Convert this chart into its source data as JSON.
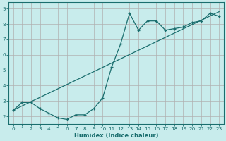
{
  "xlabel": "Humidex (Indice chaleur)",
  "background_color": "#c8ecec",
  "grid_color": "#b0b0b0",
  "line_color": "#1a6e6e",
  "xlim": [
    -0.5,
    23.5
  ],
  "ylim": [
    1.5,
    9.4
  ],
  "xticks": [
    0,
    1,
    2,
    3,
    4,
    5,
    6,
    7,
    8,
    9,
    10,
    11,
    12,
    13,
    14,
    15,
    16,
    17,
    18,
    19,
    20,
    21,
    22,
    23
  ],
  "yticks": [
    2,
    3,
    4,
    5,
    6,
    7,
    8,
    9
  ],
  "curve1_x": [
    0,
    1,
    2,
    3,
    4,
    5,
    6,
    7,
    8,
    9,
    10,
    11,
    12,
    13,
    14,
    15,
    16,
    17,
    18,
    19,
    20,
    21,
    22,
    23
  ],
  "curve1_y": [
    2.4,
    2.9,
    2.9,
    2.5,
    2.2,
    1.9,
    1.8,
    2.1,
    2.1,
    2.5,
    3.2,
    5.2,
    6.7,
    8.7,
    7.6,
    8.2,
    8.2,
    7.6,
    7.7,
    7.8,
    8.1,
    8.2,
    8.7,
    8.5
  ],
  "curve2_x": [
    0,
    23
  ],
  "curve2_y": [
    2.4,
    8.8
  ]
}
